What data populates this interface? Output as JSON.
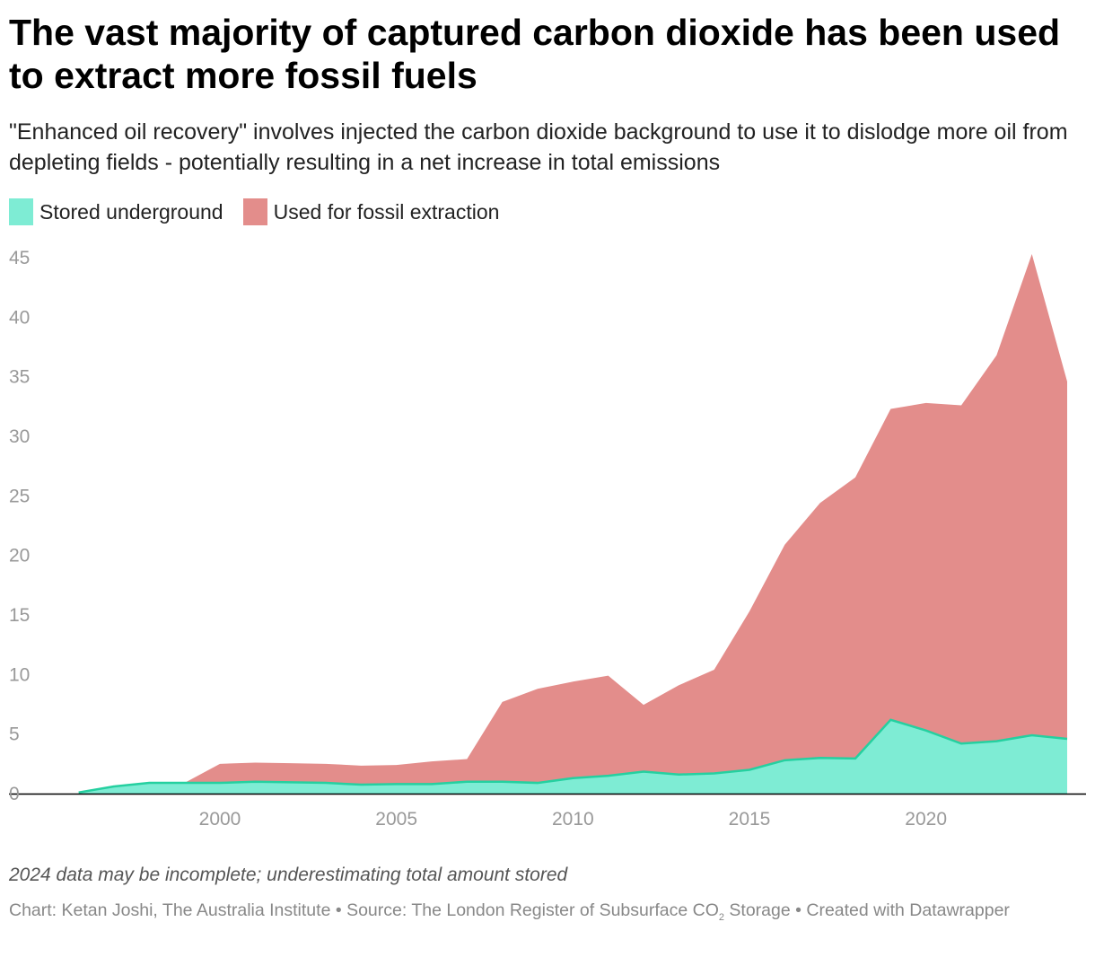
{
  "header": {
    "title": "The vast majority of captured carbon dioxide has been used to extract more fossil fuels",
    "subtitle": "\"Enhanced oil recovery\" involves injected the carbon dioxide background to use it to dislodge more oil from depleting fields - potentially resulting in a net increase in total emissions"
  },
  "legend": [
    {
      "label": "Stored underground",
      "color": "#7eecd4"
    },
    {
      "label": "Used for fossil extraction",
      "color": "#e38d8b"
    }
  ],
  "chart_data": {
    "type": "area",
    "stacked": true,
    "title": "The vast majority of captured carbon dioxide has been used to extract more fossil fuels",
    "xlabel": "",
    "ylabel": "",
    "x": [
      1996,
      1997,
      1998,
      1999,
      2000,
      2001,
      2002,
      2003,
      2004,
      2005,
      2006,
      2007,
      2008,
      2009,
      2010,
      2011,
      2012,
      2013,
      2014,
      2015,
      2016,
      2017,
      2018,
      2019,
      2020,
      2021,
      2022,
      2023,
      2024
    ],
    "series": [
      {
        "name": "Stored underground",
        "color": "#7eecd4",
        "line_color": "#25d0a0",
        "values": [
          0.1,
          0.6,
          0.9,
          0.9,
          0.9,
          1.0,
          0.95,
          0.9,
          0.75,
          0.8,
          0.8,
          1.0,
          1.0,
          0.9,
          1.3,
          1.5,
          1.85,
          1.6,
          1.7,
          2.0,
          2.8,
          3.0,
          2.95,
          6.2,
          5.3,
          4.2,
          4.4,
          4.9,
          4.6
        ]
      },
      {
        "name": "Used for fossil extraction",
        "color": "#e38d8b",
        "values": [
          0,
          0,
          0,
          0,
          1.6,
          1.6,
          1.6,
          1.6,
          1.6,
          1.6,
          1.9,
          1.9,
          6.7,
          7.9,
          8.1,
          8.4,
          5.6,
          7.5,
          8.7,
          13.3,
          18.1,
          21.4,
          23.6,
          26.1,
          27.5,
          28.4,
          32.4,
          40.4,
          30.0
        ]
      }
    ],
    "xlim": [
      1995.5,
      2024
    ],
    "ylim": [
      0,
      45
    ],
    "x_ticks": [
      "2000",
      "2005",
      "2010",
      "2015",
      "2020"
    ],
    "y_ticks": [
      "0",
      "5",
      "10",
      "15",
      "20",
      "25",
      "30",
      "35",
      "40",
      "45"
    ],
    "grid": false,
    "legend_position": "top-left"
  },
  "notes": {
    "caveat": "2024 data may be incomplete; underestimating total amount stored",
    "credit_pre": "Chart: Ketan Joshi, The Australia Institute • Source: The London Register of Subsurface CO",
    "credit_sub": "2",
    "credit_post": " Storage • Created with Datawrapper"
  }
}
